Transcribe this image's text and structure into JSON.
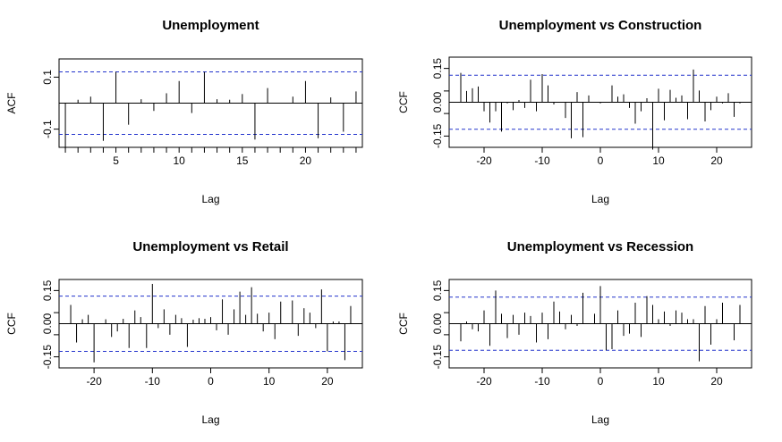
{
  "chart_data": [
    {
      "type": "bar",
      "title": "Unemployment",
      "xlabel": "Lag",
      "ylabel": "ACF",
      "xlim": [
        0.5,
        24.5
      ],
      "ylim": [
        -0.17,
        0.17
      ],
      "xticks": [
        0,
        5,
        10,
        15,
        20
      ],
      "yticks": [
        -0.1,
        0.1
      ],
      "minor_xticks": [
        1,
        2,
        3,
        4,
        6,
        7,
        8,
        9,
        11,
        12,
        13,
        14,
        16,
        17,
        18,
        19,
        21,
        22,
        23,
        24
      ],
      "conf": 0.12,
      "grid": false,
      "lags": [
        1,
        2,
        3,
        4,
        5,
        6,
        7,
        8,
        9,
        10,
        11,
        12,
        13,
        14,
        15,
        16,
        17,
        18,
        19,
        20,
        21,
        22,
        23,
        24
      ],
      "values": [
        -0.175,
        0.013,
        0.025,
        -0.145,
        0.12,
        -0.083,
        0.015,
        -0.03,
        0.038,
        0.085,
        -0.038,
        0.12,
        0.015,
        0.013,
        0.035,
        -0.14,
        0.058,
        0.0,
        0.025,
        0.085,
        -0.135,
        0.022,
        -0.11,
        0.045
      ]
    },
    {
      "type": "bar",
      "title": "Unemployment vs Construction",
      "xlabel": "Lag",
      "ylabel": "CCF",
      "xlim": [
        -26,
        26
      ],
      "ylim": [
        -0.2,
        0.2
      ],
      "xticks": [
        -20,
        -10,
        0,
        10,
        20
      ],
      "yticks": [
        -0.15,
        -0.05,
        0.05,
        0.15
      ],
      "ytick_labels": [
        "-0.15",
        "0.00",
        "0.15"
      ],
      "ytick_label_values": [
        -0.15,
        0.0,
        0.15
      ],
      "conf": 0.12,
      "grid": false,
      "lags": [
        -24,
        -23,
        -22,
        -21,
        -20,
        -19,
        -18,
        -17,
        -16,
        -15,
        -14,
        -13,
        -12,
        -11,
        -10,
        -9,
        -8,
        -7,
        -6,
        -5,
        -4,
        -3,
        -2,
        -1,
        0,
        1,
        2,
        3,
        4,
        5,
        6,
        7,
        8,
        9,
        10,
        11,
        12,
        13,
        14,
        15,
        16,
        17,
        18,
        19,
        20,
        21,
        22,
        23,
        24
      ],
      "values": [
        0.13,
        0.05,
        0.062,
        0.07,
        -0.04,
        -0.09,
        -0.04,
        -0.13,
        -0.005,
        -0.035,
        0.01,
        -0.025,
        0.1,
        -0.04,
        0.125,
        0.075,
        -0.01,
        0.0,
        -0.07,
        -0.16,
        0.045,
        -0.155,
        0.03,
        0.0,
        -0.005,
        0.0,
        0.075,
        0.025,
        0.035,
        -0.025,
        -0.095,
        -0.04,
        0.018,
        -0.21,
        0.06,
        -0.08,
        0.055,
        0.02,
        0.03,
        -0.075,
        0.145,
        0.052,
        -0.085,
        -0.035,
        0.025,
        -0.005,
        0.04,
        -0.065,
        -0.005
      ]
    },
    {
      "type": "bar",
      "title": "Unemployment vs Retail",
      "xlabel": "Lag",
      "ylabel": "CCF",
      "xlim": [
        -26,
        26
      ],
      "ylim": [
        -0.2,
        0.2
      ],
      "xticks": [
        -20,
        -10,
        0,
        10,
        20
      ],
      "yticks": [
        -0.15,
        -0.05,
        0.05,
        0.15
      ],
      "ytick_labels": [
        "-0.15",
        "0.00",
        "0.15"
      ],
      "ytick_label_values": [
        -0.15,
        0.0,
        0.15
      ],
      "conf": 0.125,
      "grid": false,
      "lags": [
        -24,
        -23,
        -22,
        -21,
        -20,
        -19,
        -18,
        -17,
        -16,
        -15,
        -14,
        -13,
        -12,
        -11,
        -10,
        -9,
        -8,
        -7,
        -6,
        -5,
        -4,
        -3,
        -2,
        -1,
        0,
        1,
        2,
        3,
        4,
        5,
        6,
        7,
        8,
        9,
        10,
        11,
        12,
        13,
        14,
        15,
        16,
        17,
        18,
        19,
        20,
        21,
        22,
        23,
        24
      ],
      "values": [
        0.085,
        -0.085,
        0.02,
        0.04,
        -0.175,
        0.0,
        0.02,
        -0.06,
        -0.035,
        0.022,
        -0.11,
        0.06,
        0.03,
        -0.11,
        0.18,
        -0.02,
        0.065,
        -0.05,
        0.04,
        0.025,
        -0.105,
        0.018,
        0.025,
        0.022,
        0.03,
        -0.03,
        0.11,
        -0.05,
        0.065,
        0.145,
        0.04,
        0.165,
        0.045,
        -0.035,
        0.05,
        -0.07,
        0.1,
        0.0,
        0.105,
        -0.055,
        0.07,
        0.05,
        -0.02,
        0.155,
        -0.125,
        0.01,
        0.01,
        -0.165,
        0.08
      ]
    },
    {
      "type": "bar",
      "title": "Unemployment vs Recession",
      "xlabel": "Lag",
      "ylabel": "CCF",
      "xlim": [
        -26,
        26
      ],
      "ylim": [
        -0.2,
        0.2
      ],
      "xticks": [
        -20,
        -10,
        0,
        10,
        20
      ],
      "yticks": [
        -0.15,
        -0.05,
        0.05,
        0.15
      ],
      "ytick_labels": [
        "-0.15",
        "0.00",
        "0.15"
      ],
      "ytick_label_values": [
        -0.15,
        0.0,
        0.15
      ],
      "conf": 0.12,
      "grid": false,
      "lags": [
        -24,
        -23,
        -22,
        -21,
        -20,
        -19,
        -18,
        -17,
        -16,
        -15,
        -14,
        -13,
        -12,
        -11,
        -10,
        -9,
        -8,
        -7,
        -6,
        -5,
        -4,
        -3,
        -2,
        -1,
        0,
        1,
        2,
        3,
        4,
        5,
        6,
        7,
        8,
        9,
        10,
        11,
        12,
        13,
        14,
        15,
        16,
        17,
        18,
        19,
        20,
        21,
        22,
        23,
        24
      ],
      "values": [
        -0.08,
        0.01,
        -0.025,
        -0.035,
        0.06,
        -0.1,
        0.15,
        0.045,
        -0.065,
        0.04,
        -0.05,
        0.05,
        0.035,
        -0.085,
        0.05,
        -0.07,
        0.1,
        0.055,
        -0.025,
        0.04,
        -0.01,
        0.14,
        0.0,
        0.045,
        0.17,
        -0.12,
        -0.115,
        0.06,
        -0.055,
        -0.045,
        0.095,
        -0.06,
        0.125,
        0.085,
        0.02,
        0.055,
        -0.01,
        0.06,
        0.05,
        0.02,
        0.02,
        -0.17,
        0.08,
        -0.095,
        0.02,
        0.095,
        0.0,
        -0.075,
        0.085
      ]
    }
  ]
}
